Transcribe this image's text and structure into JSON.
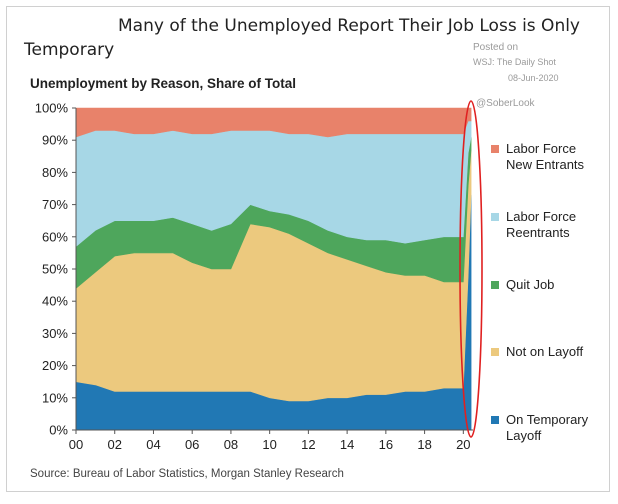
{
  "header": {
    "title_line1": "Many of the Unemployed Report Their Job Loss is Only",
    "title_line2": "Temporary",
    "posted_on": "Posted on",
    "posted_source": "WSJ: The Daily Shot",
    "posted_date": "08-Jun-2020",
    "handle": "@SoberLook"
  },
  "source": "Source: Bureau of Labor Statistics, Morgan Stanley Research",
  "colors": {
    "new_entrants": "#e8826a",
    "reentrants": "#a7d7e6",
    "quit_job": "#4ea65c",
    "not_on_layoff": "#ecc97e",
    "temporary_layoff": "#2178b4",
    "highlight": "#e02020"
  },
  "chart_data": {
    "type": "area",
    "stacked": true,
    "percent_stacked": true,
    "title": "Unemployment by Reason, Share of Total",
    "x": [
      "00",
      "01",
      "02",
      "03",
      "04",
      "05",
      "06",
      "07",
      "08",
      "09",
      "10",
      "11",
      "12",
      "13",
      "14",
      "15",
      "16",
      "17",
      "18",
      "19",
      "20.0",
      "20.25",
      "20.4"
    ],
    "x_tick_labels": [
      "00",
      "02",
      "04",
      "06",
      "08",
      "10",
      "12",
      "14",
      "16",
      "18",
      "20"
    ],
    "y_tick_labels": [
      "0%",
      "10%",
      "20%",
      "30%",
      "40%",
      "50%",
      "60%",
      "70%",
      "80%",
      "90%",
      "100%"
    ],
    "ylim": [
      0,
      100
    ],
    "legend_position": "right",
    "series": [
      {
        "name": "On Temporary Layoff",
        "values": [
          15,
          14,
          12,
          12,
          12,
          12,
          12,
          12,
          12,
          12,
          10,
          9,
          9,
          10,
          10,
          11,
          11,
          12,
          12,
          13,
          13,
          48,
          73
        ]
      },
      {
        "name": "Not on Layoff",
        "values": [
          29,
          35,
          42,
          43,
          43,
          43,
          40,
          38,
          38,
          52,
          53,
          52,
          49,
          45,
          43,
          40,
          38,
          36,
          36,
          33,
          33,
          28,
          14
        ]
      },
      {
        "name": "Quit Job",
        "values": [
          13,
          13,
          11,
          10,
          10,
          11,
          12,
          12,
          14,
          6,
          5,
          6,
          7,
          7,
          7,
          8,
          10,
          10,
          11,
          14,
          14,
          10,
          4
        ]
      },
      {
        "name": "Labor Force Reentrants",
        "values": [
          34,
          31,
          28,
          27,
          27,
          27,
          28,
          30,
          29,
          23,
          25,
          25,
          27,
          29,
          32,
          33,
          33,
          34,
          33,
          32,
          32,
          10,
          5
        ]
      },
      {
        "name": "Labor Force New Entrants",
        "values": [
          9,
          7,
          7,
          8,
          8,
          7,
          8,
          8,
          7,
          7,
          7,
          8,
          8,
          9,
          8,
          8,
          8,
          8,
          8,
          8,
          8,
          4,
          4
        ]
      }
    ]
  }
}
